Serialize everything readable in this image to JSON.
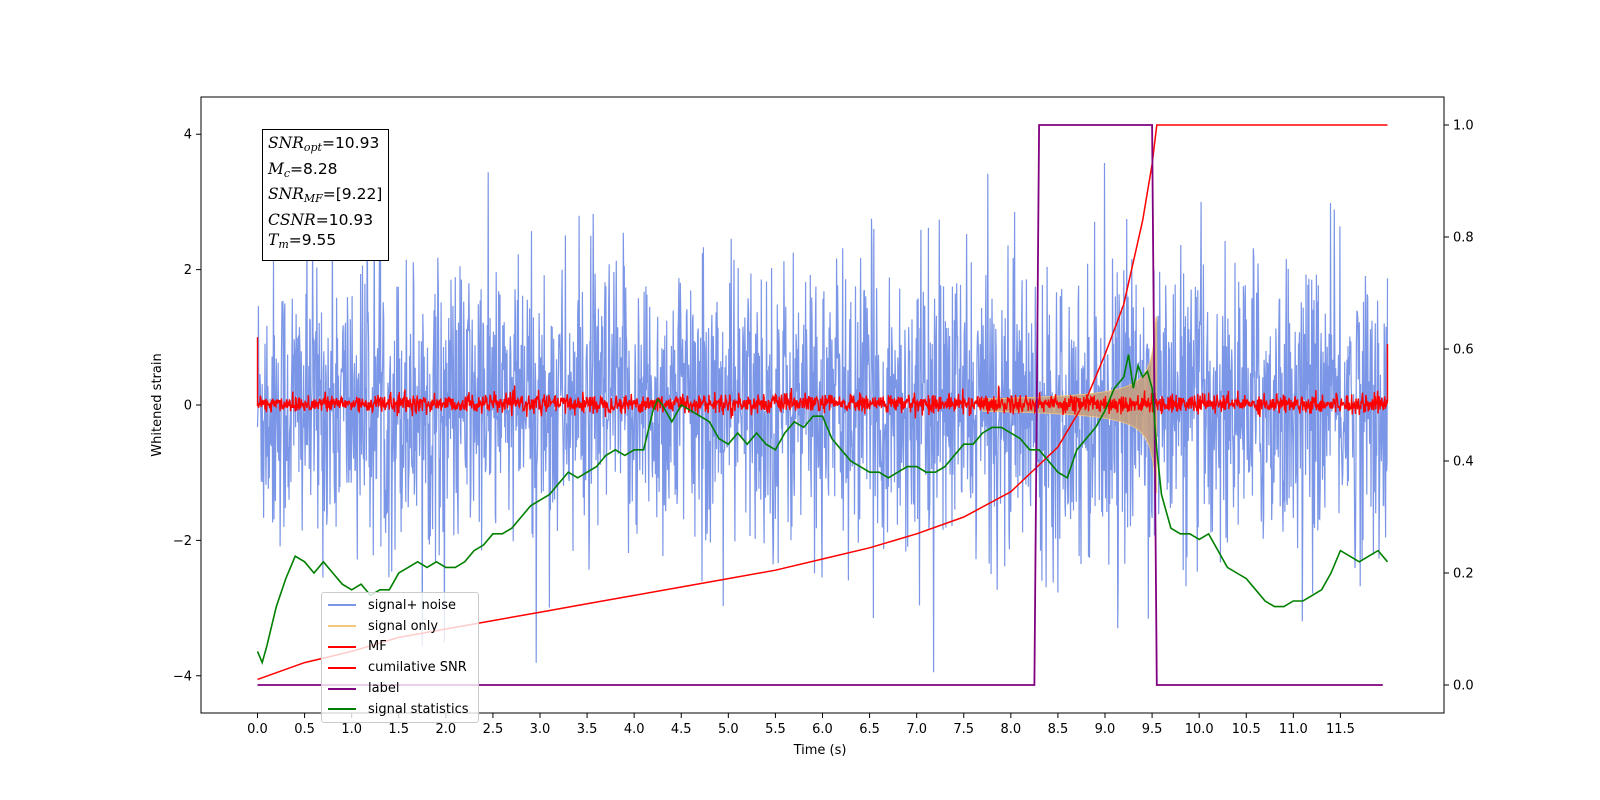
{
  "chart_data": {
    "type": "line",
    "xlabel": "Time (s)",
    "ylabel": "Whitened strain",
    "xlim": [
      -0.6,
      12.6
    ],
    "ylim": [
      -4.55,
      4.55
    ],
    "ylim_right": [
      -0.05,
      1.05
    ],
    "x_ticks": [
      "0.0",
      "0.5",
      "1.0",
      "1.5",
      "2.0",
      "2.5",
      "3.0",
      "3.5",
      "4.0",
      "4.5",
      "5.0",
      "5.5",
      "6.0",
      "6.5",
      "7.0",
      "7.5",
      "8.0",
      "8.5",
      "9.0",
      "9.5",
      "10.0",
      "10.5",
      "11.0",
      "11.5"
    ],
    "y_ticks_left": [
      "4",
      "2",
      "0",
      "−2",
      "−4"
    ],
    "y_ticks_right": [
      "1.0",
      "0.8",
      "0.6",
      "0.4",
      "0.2",
      "0.0"
    ],
    "grid": false,
    "legend_placement": "lower-left",
    "colors": {
      "signal_noise": "#7b96e6",
      "signal_only": "#f5c77e",
      "mf": "#ff0000",
      "cumulative_snr": "#ff0000",
      "label": "#800080",
      "statistics": "#008000"
    },
    "annotation": {
      "snr_opt": "=10.93",
      "mc": "=8.28",
      "snr_mf": "=[9.22]",
      "csnr": "=10.93",
      "tm": "=9.55"
    },
    "series": [
      {
        "name": "signal+ noise",
        "axis": "left",
        "description_range": {
          "x": [
            0.0,
            12.0
          ],
          "approx_band": [
            -2.1,
            2.2
          ],
          "max": 3.9,
          "min": -4.1
        }
      },
      {
        "name": "signal only",
        "axis": "left",
        "chirp": {
          "start_x": 7.7,
          "peak_x": 9.5,
          "end_x": 9.55,
          "peak_amplitude": 1.3
        }
      },
      {
        "name": "MF",
        "axis": "left",
        "description_range": {
          "x": [
            0.0,
            12.0
          ],
          "approx_band": [
            -0.15,
            0.2
          ]
        }
      },
      {
        "name": "cumilative SNR",
        "axis": "right",
        "x": [
          0.0,
          0.5,
          1.0,
          1.5,
          2.0,
          2.5,
          3.0,
          3.5,
          4.0,
          4.5,
          5.0,
          5.5,
          6.0,
          6.5,
          7.0,
          7.5,
          8.0,
          8.5,
          8.8,
          9.0,
          9.2,
          9.4,
          9.5,
          9.55,
          10.0,
          11.0,
          12.0
        ],
        "values": [
          0.01,
          0.04,
          0.06,
          0.085,
          0.1,
          0.115,
          0.13,
          0.145,
          0.16,
          0.175,
          0.19,
          0.205,
          0.225,
          0.245,
          0.27,
          0.3,
          0.345,
          0.425,
          0.51,
          0.59,
          0.68,
          0.83,
          0.93,
          1.0,
          1.0,
          1.0,
          1.0
        ]
      },
      {
        "name": "label",
        "axis": "right",
        "x": [
          0.0,
          8.25,
          8.3,
          9.5,
          9.55,
          11.95
        ],
        "values": [
          0.0,
          0.0,
          1.0,
          1.0,
          0.0,
          0.0
        ]
      },
      {
        "name": "signal statistics",
        "axis": "right",
        "x": [
          0.0,
          0.05,
          0.1,
          0.2,
          0.3,
          0.4,
          0.5,
          0.6,
          0.7,
          0.8,
          0.9,
          1.0,
          1.1,
          1.2,
          1.3,
          1.4,
          1.5,
          1.6,
          1.7,
          1.8,
          1.9,
          2.0,
          2.1,
          2.2,
          2.3,
          2.4,
          2.5,
          2.6,
          2.7,
          2.8,
          2.9,
          3.0,
          3.1,
          3.2,
          3.3,
          3.4,
          3.5,
          3.6,
          3.7,
          3.8,
          3.9,
          4.0,
          4.1,
          4.2,
          4.25,
          4.3,
          4.4,
          4.5,
          4.6,
          4.7,
          4.8,
          4.9,
          5.0,
          5.1,
          5.2,
          5.3,
          5.4,
          5.5,
          5.6,
          5.7,
          5.8,
          5.9,
          6.0,
          6.1,
          6.2,
          6.3,
          6.4,
          6.5,
          6.6,
          6.7,
          6.8,
          6.9,
          7.0,
          7.1,
          7.2,
          7.3,
          7.4,
          7.5,
          7.6,
          7.7,
          7.8,
          7.9,
          8.0,
          8.1,
          8.2,
          8.3,
          8.4,
          8.5,
          8.6,
          8.7,
          8.8,
          8.9,
          9.0,
          9.1,
          9.2,
          9.25,
          9.3,
          9.35,
          9.4,
          9.45,
          9.5,
          9.55,
          9.6,
          9.7,
          9.8,
          9.9,
          10.0,
          10.1,
          10.2,
          10.3,
          10.4,
          10.5,
          10.6,
          10.7,
          10.8,
          10.9,
          11.0,
          11.1,
          11.2,
          11.3,
          11.4,
          11.5,
          11.6,
          11.7,
          11.8,
          11.9,
          12.0
        ],
        "values": [
          0.06,
          0.04,
          0.07,
          0.14,
          0.19,
          0.23,
          0.22,
          0.2,
          0.22,
          0.2,
          0.18,
          0.17,
          0.18,
          0.16,
          0.17,
          0.17,
          0.2,
          0.21,
          0.22,
          0.21,
          0.22,
          0.21,
          0.21,
          0.22,
          0.24,
          0.25,
          0.27,
          0.27,
          0.28,
          0.3,
          0.32,
          0.33,
          0.34,
          0.36,
          0.38,
          0.37,
          0.38,
          0.39,
          0.41,
          0.42,
          0.41,
          0.42,
          0.42,
          0.49,
          0.51,
          0.5,
          0.47,
          0.5,
          0.49,
          0.48,
          0.47,
          0.44,
          0.43,
          0.45,
          0.43,
          0.45,
          0.43,
          0.42,
          0.45,
          0.47,
          0.46,
          0.48,
          0.48,
          0.44,
          0.42,
          0.4,
          0.39,
          0.38,
          0.38,
          0.37,
          0.38,
          0.39,
          0.39,
          0.38,
          0.38,
          0.39,
          0.41,
          0.43,
          0.43,
          0.45,
          0.46,
          0.46,
          0.45,
          0.44,
          0.42,
          0.42,
          0.4,
          0.38,
          0.37,
          0.42,
          0.44,
          0.46,
          0.49,
          0.53,
          0.55,
          0.59,
          0.53,
          0.57,
          0.55,
          0.56,
          0.53,
          0.42,
          0.34,
          0.28,
          0.27,
          0.27,
          0.26,
          0.27,
          0.24,
          0.21,
          0.2,
          0.19,
          0.17,
          0.15,
          0.14,
          0.14,
          0.15,
          0.15,
          0.16,
          0.17,
          0.2,
          0.24,
          0.23,
          0.22,
          0.23,
          0.24,
          0.22
        ]
      }
    ]
  }
}
